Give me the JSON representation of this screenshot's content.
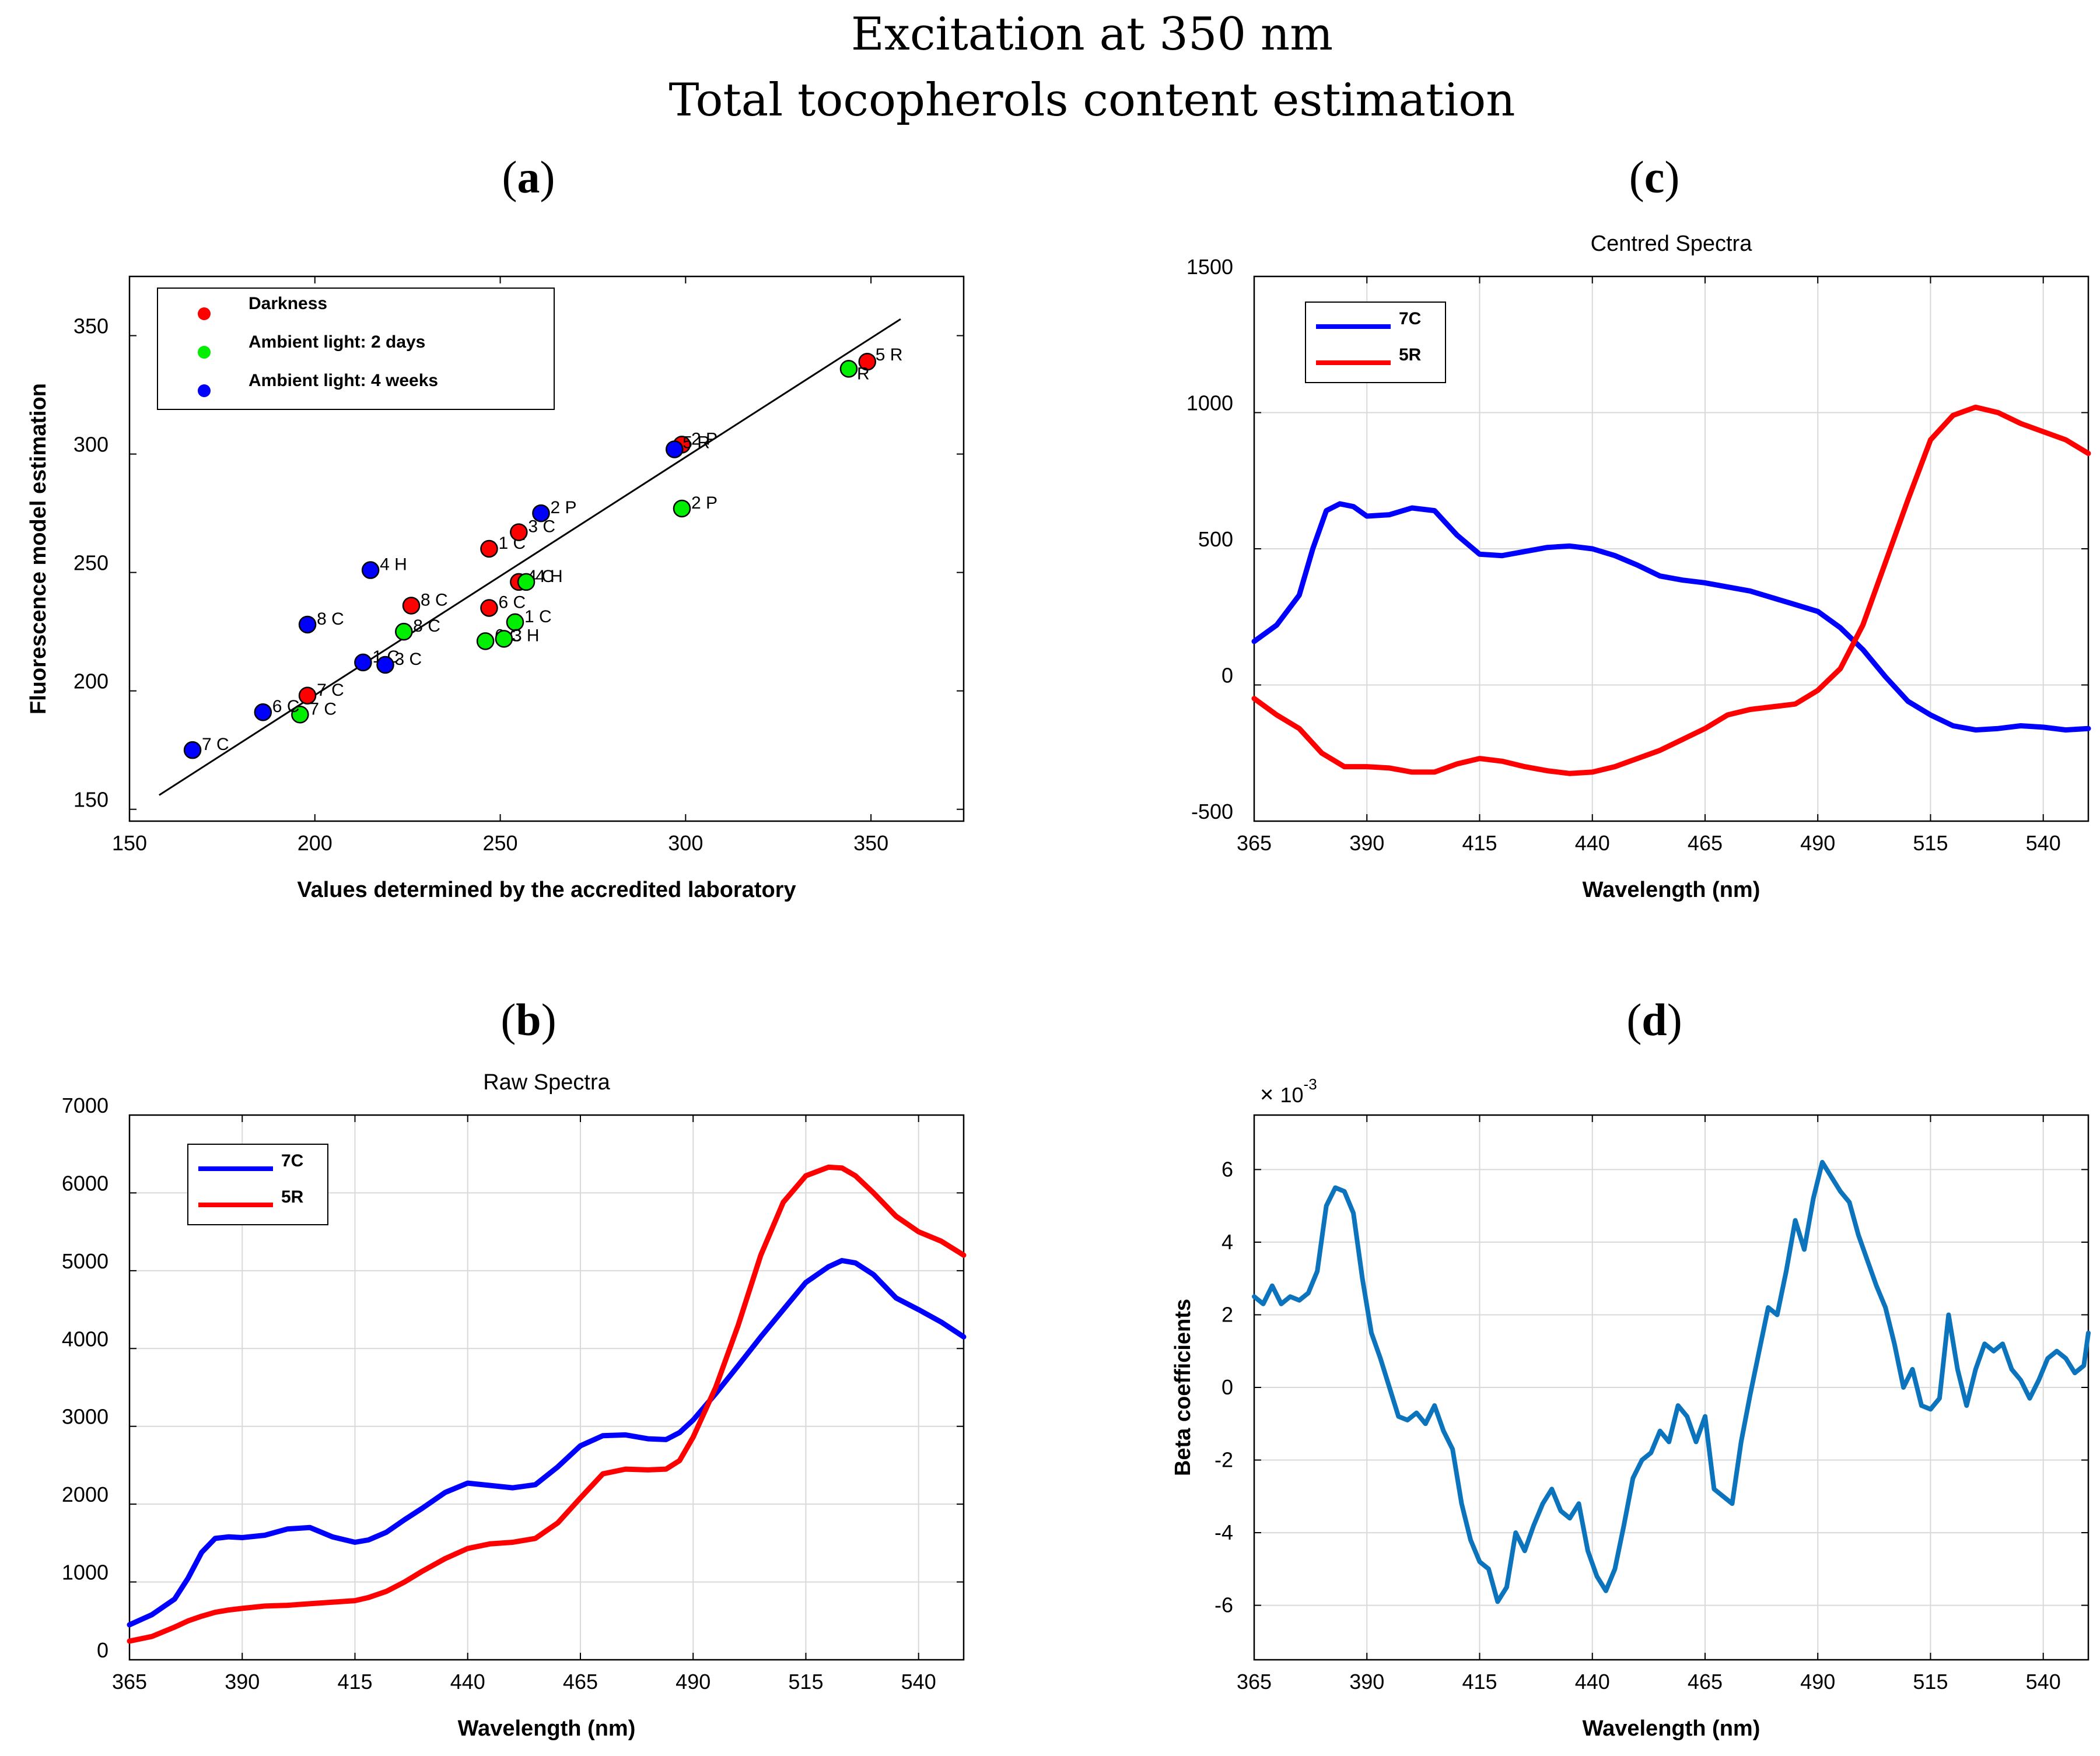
{
  "figure": {
    "title_line1": "Excitation at 350 nm",
    "title_line2": "Total tocopherols content estimation",
    "panel_labels": [
      "a",
      "b",
      "c",
      "d"
    ]
  },
  "chart_data": [
    {
      "id": "a",
      "type": "scatter",
      "xlabel": "Values determined by the accredited laboratory",
      "ylabel": "Fluorescence model estimation",
      "xlim": [
        150,
        375
      ],
      "ylim": [
        145,
        375
      ],
      "xticks": [
        150,
        200,
        250,
        300,
        350
      ],
      "yticks": [
        150,
        200,
        250,
        300,
        350
      ],
      "grid": false,
      "legend_position": "top-left",
      "regression_line": {
        "x": [
          158,
          358
        ],
        "y": [
          156,
          357
        ]
      },
      "series": [
        {
          "name": "Darkness",
          "color": "#ff0000",
          "points": [
            {
              "x": 349,
              "y": 339,
              "label": "5 R"
            },
            {
              "x": 299,
              "y": 304,
              "label": "2 P"
            },
            {
              "x": 247,
              "y": 260,
              "label": "1 C"
            },
            {
              "x": 255,
              "y": 267,
              "label": "3 C"
            },
            {
              "x": 255,
              "y": 246,
              "label": "4 C"
            },
            {
              "x": 226,
              "y": 236,
              "label": "8 C"
            },
            {
              "x": 247,
              "y": 235,
              "label": "6 C"
            },
            {
              "x": 198,
              "y": 198,
              "label": "7 C"
            }
          ]
        },
        {
          "name": "Ambient light: 2 days",
          "color": "#00ee00",
          "points": [
            {
              "x": 344,
              "y": 336,
              "label": "R"
            },
            {
              "x": 299,
              "y": 277,
              "label": "2 P"
            },
            {
              "x": 257,
              "y": 246,
              "label": "4 H"
            },
            {
              "x": 224,
              "y": 225,
              "label": "8 C"
            },
            {
              "x": 254,
              "y": 229,
              "label": "1 C"
            },
            {
              "x": 246,
              "y": 221,
              "label": "6 C"
            },
            {
              "x": 251,
              "y": 222,
              "label": "3 H"
            },
            {
              "x": 196,
              "y": 190,
              "label": "7 C"
            }
          ]
        },
        {
          "name": "Ambient light: 4 weeks",
          "color": "#0000ff",
          "points": [
            {
              "x": 297,
              "y": 302,
              "label": "5 R"
            },
            {
              "x": 261,
              "y": 275,
              "label": "2 P"
            },
            {
              "x": 215,
              "y": 251,
              "label": "4 H"
            },
            {
              "x": 198,
              "y": 228,
              "label": "8 C"
            },
            {
              "x": 213,
              "y": 212,
              "label": "1 C"
            },
            {
              "x": 219,
              "y": 211,
              "label": "3 C"
            },
            {
              "x": 186,
              "y": 191,
              "label": "6 C"
            },
            {
              "x": 167,
              "y": 175,
              "label": "7 C"
            }
          ]
        }
      ]
    },
    {
      "id": "b",
      "type": "line",
      "title": "Raw Spectra",
      "xlabel": "Wavelength (nm)",
      "ylabel": "",
      "xlim": [
        365,
        550
      ],
      "ylim": [
        0,
        7000
      ],
      "xticks": [
        365,
        390,
        415,
        440,
        465,
        490,
        515,
        540
      ],
      "yticks": [
        0,
        1000,
        2000,
        3000,
        4000,
        5000,
        6000,
        7000
      ],
      "grid": true,
      "legend_position": "top-left",
      "series": [
        {
          "name": "7C",
          "color": "#0000ff",
          "x": [
            365,
            370,
            375,
            378,
            381,
            384,
            387,
            390,
            395,
            400,
            405,
            410,
            415,
            418,
            422,
            426,
            430,
            435,
            440,
            445,
            450,
            455,
            460,
            465,
            470,
            475,
            480,
            484,
            487,
            490,
            495,
            500,
            505,
            510,
            515,
            520,
            523,
            526,
            530,
            535,
            540,
            545,
            550
          ],
          "values": [
            450,
            580,
            780,
            1050,
            1380,
            1560,
            1580,
            1570,
            1600,
            1680,
            1700,
            1580,
            1510,
            1540,
            1640,
            1800,
            1950,
            2150,
            2270,
            2240,
            2210,
            2250,
            2480,
            2750,
            2880,
            2890,
            2840,
            2830,
            2920,
            3080,
            3420,
            3780,
            4150,
            4500,
            4850,
            5050,
            5130,
            5100,
            4950,
            4650,
            4500,
            4340,
            4150
          ]
        },
        {
          "name": "5R",
          "color": "#ff0000",
          "x": [
            365,
            370,
            375,
            378,
            381,
            384,
            387,
            390,
            395,
            400,
            405,
            410,
            415,
            418,
            422,
            426,
            430,
            435,
            440,
            445,
            450,
            455,
            460,
            465,
            470,
            475,
            480,
            484,
            487,
            490,
            495,
            500,
            505,
            510,
            515,
            520,
            523,
            526,
            530,
            535,
            540,
            545,
            550
          ],
          "values": [
            240,
            300,
            420,
            500,
            560,
            610,
            640,
            660,
            690,
            700,
            720,
            740,
            760,
            800,
            880,
            1000,
            1140,
            1300,
            1430,
            1490,
            1510,
            1560,
            1760,
            2080,
            2390,
            2450,
            2440,
            2450,
            2560,
            2860,
            3500,
            4300,
            5200,
            5880,
            6220,
            6330,
            6320,
            6220,
            6000,
            5700,
            5500,
            5380,
            5200
          ]
        }
      ]
    },
    {
      "id": "c",
      "type": "line",
      "title": "Centred Spectra",
      "xlabel": "Wavelength (nm)",
      "ylabel": "",
      "xlim": [
        365,
        550
      ],
      "ylim": [
        -500,
        1500
      ],
      "xticks": [
        365,
        390,
        415,
        440,
        465,
        490,
        515,
        540
      ],
      "yticks": [
        -500,
        0,
        500,
        1000,
        1500
      ],
      "grid": true,
      "legend_position": "top-left",
      "series": [
        {
          "name": "7C",
          "color": "#0000ff",
          "x": [
            365,
            370,
            375,
            378,
            381,
            384,
            387,
            390,
            395,
            400,
            405,
            410,
            415,
            420,
            425,
            430,
            435,
            440,
            445,
            450,
            455,
            460,
            465,
            470,
            475,
            480,
            485,
            490,
            495,
            500,
            505,
            510,
            515,
            520,
            525,
            530,
            535,
            540,
            545,
            550
          ],
          "values": [
            160,
            220,
            330,
            500,
            640,
            665,
            655,
            620,
            625,
            650,
            640,
            550,
            480,
            475,
            490,
            505,
            510,
            500,
            475,
            440,
            400,
            385,
            375,
            360,
            345,
            320,
            295,
            270,
            210,
            130,
            30,
            -60,
            -110,
            -150,
            -165,
            -160,
            -150,
            -155,
            -165,
            -160
          ]
        },
        {
          "name": "5R",
          "color": "#ff0000",
          "x": [
            365,
            370,
            375,
            380,
            385,
            390,
            395,
            400,
            405,
            410,
            415,
            420,
            425,
            430,
            435,
            440,
            445,
            450,
            455,
            460,
            465,
            470,
            475,
            480,
            485,
            490,
            495,
            500,
            505,
            510,
            515,
            520,
            525,
            530,
            535,
            540,
            545,
            550
          ],
          "values": [
            -50,
            -110,
            -160,
            -250,
            -300,
            -300,
            -305,
            -320,
            -320,
            -290,
            -270,
            -280,
            -300,
            -315,
            -325,
            -320,
            -300,
            -270,
            -240,
            -200,
            -160,
            -110,
            -90,
            -80,
            -70,
            -20,
            60,
            220,
            450,
            680,
            900,
            990,
            1020,
            1000,
            960,
            930,
            900,
            850
          ]
        }
      ]
    },
    {
      "id": "d",
      "type": "line",
      "title": "",
      "xlabel": "Wavelength (nm)",
      "ylabel": "Beta coefficients",
      "y_multiplier": "× 10^-3",
      "multiplier_base": "10",
      "multiplier_exp": "-3",
      "xlim": [
        365,
        550
      ],
      "ylim": [
        -7.5,
        7.5
      ],
      "xticks": [
        365,
        390,
        415,
        440,
        465,
        490,
        515,
        540
      ],
      "yticks": [
        -6,
        -4,
        -2,
        0,
        2,
        4,
        6
      ],
      "grid": true,
      "series": [
        {
          "name": "beta",
          "color": "#0b74bd",
          "x": [
            365,
            367,
            369,
            371,
            373,
            375,
            377,
            379,
            381,
            383,
            385,
            387,
            389,
            391,
            393,
            395,
            397,
            399,
            401,
            403,
            405,
            407,
            409,
            411,
            413,
            415,
            417,
            419,
            421,
            423,
            425,
            427,
            429,
            431,
            433,
            435,
            437,
            439,
            441,
            443,
            445,
            447,
            449,
            451,
            453,
            455,
            457,
            459,
            461,
            463,
            465,
            467,
            469,
            471,
            473,
            475,
            477,
            479,
            481,
            483,
            485,
            487,
            489,
            491,
            493,
            495,
            497,
            499,
            501,
            503,
            505,
            507,
            509,
            511,
            513,
            515,
            517,
            519,
            521,
            523,
            525,
            527,
            529,
            531,
            533,
            535,
            537,
            539,
            541,
            543,
            545,
            547,
            549,
            550
          ],
          "values": [
            2.5,
            2.3,
            2.8,
            2.3,
            2.5,
            2.4,
            2.6,
            3.2,
            5.0,
            5.5,
            5.4,
            4.8,
            3.0,
            1.5,
            0.8,
            0.0,
            -0.8,
            -0.9,
            -0.7,
            -1.0,
            -0.5,
            -1.2,
            -1.7,
            -3.2,
            -4.2,
            -4.8,
            -5.0,
            -5.9,
            -5.5,
            -4.0,
            -4.5,
            -3.8,
            -3.2,
            -2.8,
            -3.4,
            -3.6,
            -3.2,
            -4.5,
            -5.2,
            -5.6,
            -5.0,
            -3.8,
            -2.5,
            -2.0,
            -1.8,
            -1.2,
            -1.5,
            -0.5,
            -0.8,
            -1.5,
            -0.8,
            -2.8,
            -3.0,
            -3.2,
            -1.5,
            -0.2,
            1.0,
            2.2,
            2.0,
            3.2,
            4.6,
            3.8,
            5.2,
            6.2,
            5.8,
            5.4,
            5.1,
            4.2,
            3.5,
            2.8,
            2.2,
            1.2,
            0.0,
            0.5,
            -0.5,
            -0.6,
            -0.3,
            2.0,
            0.5,
            -0.5,
            0.5,
            1.2,
            1.0,
            1.2,
            0.5,
            0.2,
            -0.3,
            0.2,
            0.8,
            1.0,
            0.8,
            0.4,
            0.6,
            1.5
          ]
        }
      ]
    }
  ]
}
